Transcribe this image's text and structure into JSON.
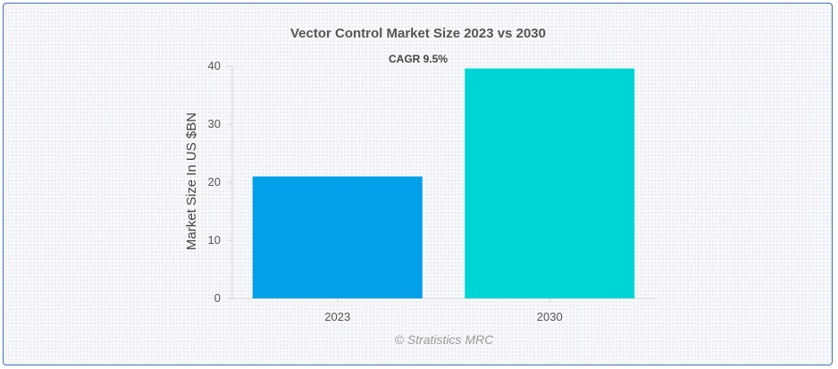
{
  "chart_data": {
    "type": "bar",
    "title": "Vector Control Market Size 2023 vs 2030",
    "subtitle": "CAGR 9.5%",
    "categories": [
      "2023",
      "2030"
    ],
    "values": [
      21,
      39.6
    ],
    "ylabel": "Market Size In US $BN",
    "xlabel": "",
    "ylim": [
      0,
      40
    ],
    "yticks": [
      0,
      10,
      20,
      30,
      40
    ],
    "bar_colors": [
      "#03a0ea",
      "#00d5d6"
    ],
    "grid": false,
    "legend": "none"
  },
  "credit": "© Stratistics MRC"
}
